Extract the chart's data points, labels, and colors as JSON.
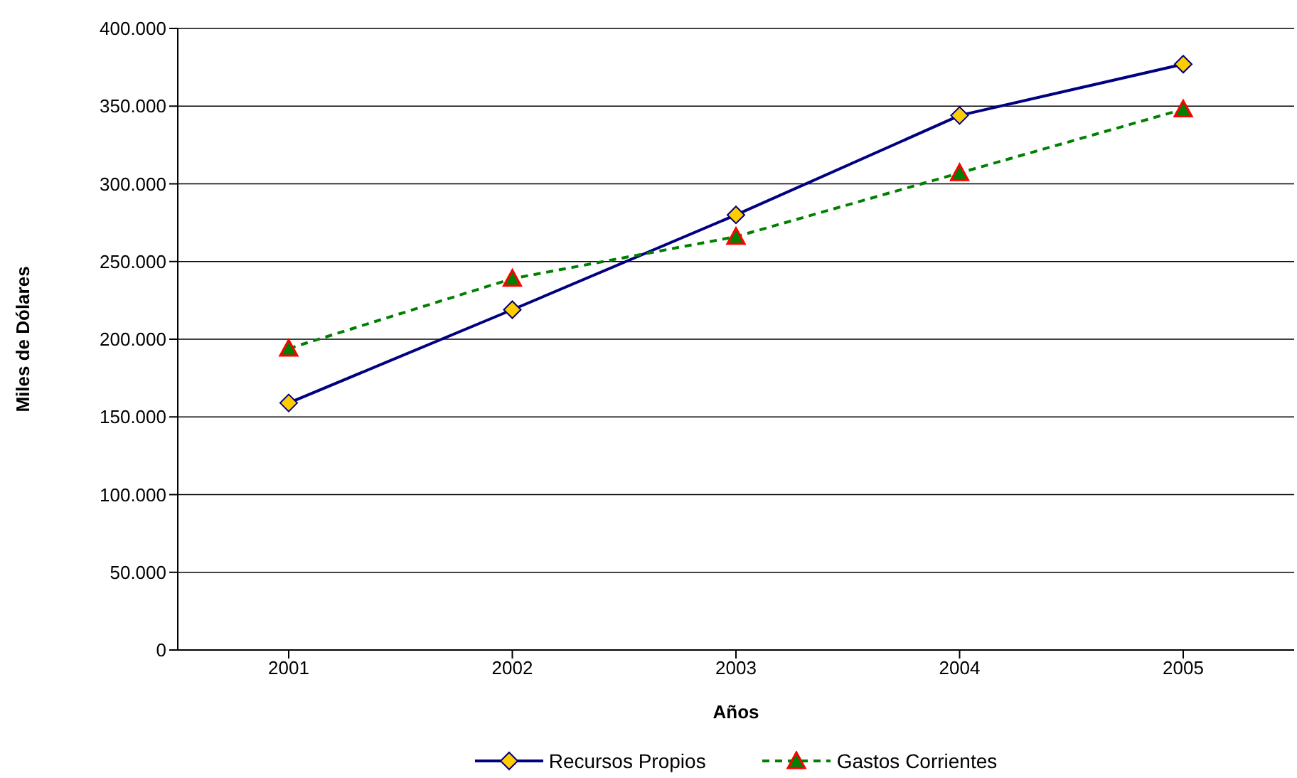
{
  "chart_data": {
    "type": "line",
    "xlabel": "Años",
    "ylabel": "Miles de Dólares",
    "categories": [
      "2001",
      "2002",
      "2003",
      "2004",
      "2005"
    ],
    "series": [
      {
        "name": "Recursos Propios",
        "color": "#000080",
        "marker": "diamond",
        "line_style": "solid",
        "values": [
          159000,
          219000,
          280000,
          344000,
          377000
        ]
      },
      {
        "name": "Gastos Corrientes",
        "color": "#008000",
        "marker": "triangle",
        "line_style": "dashed",
        "values": [
          194000,
          239000,
          266000,
          307000,
          348000
        ]
      }
    ],
    "ylim": [
      0,
      400000
    ],
    "yticks": [
      {
        "value": 0,
        "label": "0"
      },
      {
        "value": 50000,
        "label": "50.000"
      },
      {
        "value": 100000,
        "label": "100.000"
      },
      {
        "value": 150000,
        "label": "150.000"
      },
      {
        "value": 200000,
        "label": "200.000"
      },
      {
        "value": 250000,
        "label": "250.000"
      },
      {
        "value": 300000,
        "label": "300.000"
      },
      {
        "value": 350000,
        "label": "350.000"
      },
      {
        "value": 400000,
        "label": "400.000"
      }
    ],
    "grid": "y",
    "legend": "bottom"
  }
}
